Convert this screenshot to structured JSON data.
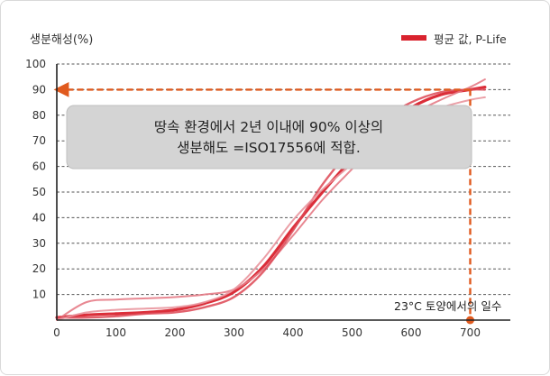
{
  "chart_data": {
    "type": "line",
    "ylabel": "생분해성(%)",
    "xlabel": "23°C 토양에서의 일수",
    "xlim": [
      0,
      730
    ],
    "ylim": [
      0,
      100
    ],
    "x_ticks": [
      "0",
      "100",
      "200",
      "300",
      "400",
      "500",
      "600",
      "700"
    ],
    "y_ticks": [
      "10",
      "20",
      "30",
      "40",
      "50",
      "60",
      "70",
      "80",
      "90",
      "100"
    ],
    "grid": "horizontal-dashed",
    "legend": {
      "label": "평균 값, P-Life",
      "position": "top-right",
      "color": "#d9232e"
    },
    "annotation": {
      "line1": "땅속 환경에서 2년 이내에 90% 이상의",
      "line2": "생분해도 =ISO17556에 적합."
    },
    "reference": {
      "x": 700,
      "y": 90,
      "color": "#e05a1e"
    },
    "series": [
      {
        "name": "평균 값, P-Life",
        "x": [
          0,
          50,
          100,
          150,
          200,
          250,
          300,
          350,
          400,
          450,
          500,
          550,
          600,
          650,
          700,
          725
        ],
        "y": [
          1,
          2,
          2.5,
          3,
          4,
          6.5,
          11,
          21,
          36,
          50,
          63,
          75,
          83,
          88,
          90,
          91
        ]
      },
      {
        "x": [
          0,
          50,
          100,
          150,
          200,
          250,
          300,
          350,
          400,
          450,
          500,
          550,
          600,
          650,
          700,
          725
        ],
        "y": [
          0,
          7,
          8,
          8.5,
          9,
          10,
          12,
          20,
          33,
          47,
          59,
          71,
          80,
          86,
          91,
          94
        ]
      },
      {
        "x": [
          0,
          50,
          100,
          150,
          200,
          250,
          300,
          350,
          400,
          450,
          500,
          550,
          600,
          650,
          700,
          725
        ],
        "y": [
          1,
          1,
          1.5,
          2.5,
          3,
          5,
          9,
          19,
          35,
          53,
          67,
          78,
          85,
          89,
          90,
          90
        ]
      },
      {
        "x": [
          0,
          50,
          100,
          150,
          200,
          250,
          300,
          350,
          400,
          450,
          500,
          550,
          600,
          650,
          700,
          725
        ],
        "y": [
          0,
          3,
          4,
          4.5,
          5,
          7,
          12,
          24,
          39,
          51,
          61,
          71,
          79,
          83,
          86,
          87
        ]
      }
    ]
  }
}
